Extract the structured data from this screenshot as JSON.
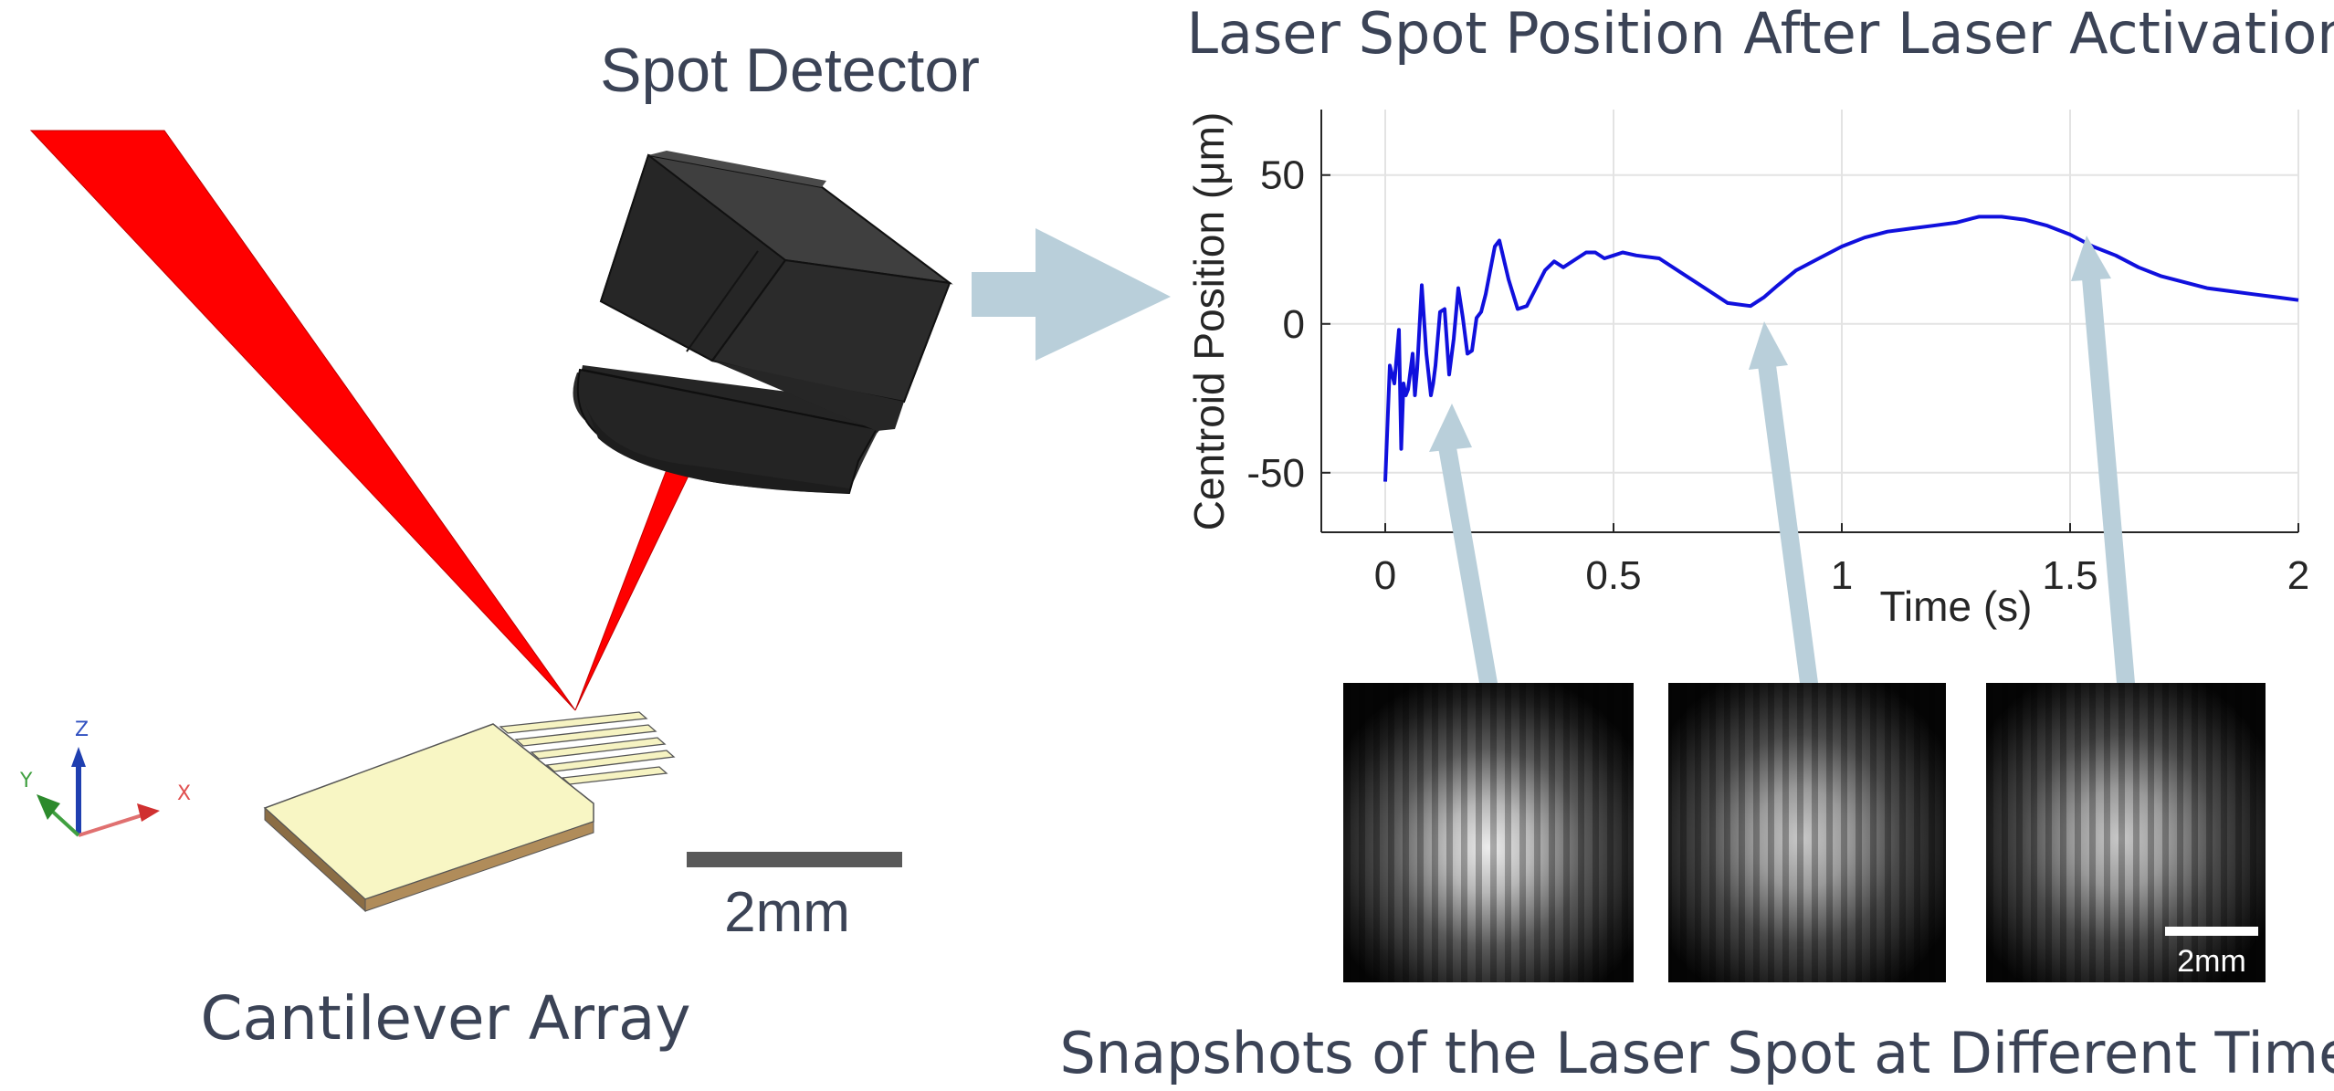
{
  "labels": {
    "spot_detector": "Spot Detector",
    "cantilever_array": "Cantilever Array",
    "scale_bar_left": "2mm",
    "snapshots_caption": "Snapshots of the  Laser Spot  at Different Times",
    "scale_bar_snapshot": "2mm"
  },
  "axes_triad": {
    "x": "X",
    "y": "Y",
    "z": "Z"
  },
  "chart_data": {
    "type": "line",
    "title": "Laser Spot Position After Laser Activation",
    "xlabel": "Time (s)",
    "ylabel": "Centroid Position (μm)",
    "xlim": [
      -0.14,
      2.0
    ],
    "ylim": [
      -70,
      72
    ],
    "x_ticks": [
      0,
      0.5,
      1,
      1.5,
      2
    ],
    "x_tick_labels": [
      "0",
      "0.5",
      "1",
      "1.5",
      "2"
    ],
    "y_ticks": [
      -50,
      0,
      50
    ],
    "y_tick_labels": [
      "-50",
      "0",
      "50"
    ],
    "grid": true,
    "series": [
      {
        "name": "centroid",
        "color": "#1010dd",
        "x": [
          0.0,
          0.01,
          0.02,
          0.03,
          0.035,
          0.04,
          0.045,
          0.05,
          0.06,
          0.065,
          0.07,
          0.08,
          0.09,
          0.1,
          0.105,
          0.11,
          0.12,
          0.13,
          0.14,
          0.15,
          0.16,
          0.17,
          0.18,
          0.19,
          0.2,
          0.21,
          0.22,
          0.23,
          0.24,
          0.25,
          0.27,
          0.29,
          0.31,
          0.33,
          0.35,
          0.37,
          0.39,
          0.42,
          0.44,
          0.46,
          0.48,
          0.5,
          0.52,
          0.55,
          0.6,
          0.65,
          0.7,
          0.75,
          0.8,
          0.83,
          0.86,
          0.9,
          0.95,
          1.0,
          1.05,
          1.1,
          1.15,
          1.2,
          1.25,
          1.3,
          1.35,
          1.4,
          1.45,
          1.5,
          1.55,
          1.6,
          1.65,
          1.7,
          1.75,
          1.8,
          1.85,
          1.9,
          1.95,
          2.0
        ],
        "values": [
          -53,
          -14,
          -20,
          -2,
          -42,
          -20,
          -24,
          -22,
          -10,
          -24,
          -15,
          13,
          -10,
          -24,
          -20,
          -14,
          4,
          5,
          -17,
          -5,
          12,
          2,
          -10,
          -9,
          2,
          4,
          10,
          18,
          26,
          28,
          15,
          5,
          6,
          12,
          18,
          21,
          19,
          22,
          24,
          24,
          22,
          23,
          24,
          23,
          22,
          17,
          12,
          7,
          6,
          9,
          13,
          18,
          22,
          26,
          29,
          31,
          32,
          33,
          34,
          36,
          36,
          35,
          33,
          30,
          26,
          23,
          19,
          16,
          14,
          12,
          11,
          10,
          9,
          8
        ]
      }
    ],
    "annotations": [
      "arrow to snapshot 1 at t≈0.15 s",
      "arrow to snapshot 2 at t≈0.85 s",
      "arrow to snapshot 3 at t≈1.55 s"
    ]
  }
}
